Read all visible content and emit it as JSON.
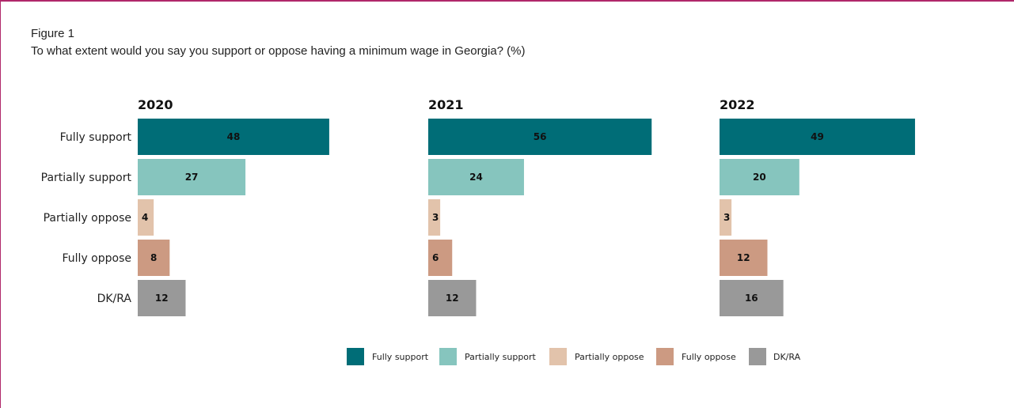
{
  "figure": {
    "label": "Figure 1",
    "question": "To what extent would you say you support or oppose having a minimum wage in Georgia? (%)"
  },
  "chart_data": {
    "type": "bar",
    "orientation": "horizontal",
    "categories": [
      "Fully support",
      "Partially support",
      "Partially oppose",
      "Fully oppose",
      "DK/RA"
    ],
    "panels": [
      {
        "title": "2020",
        "values": [
          48,
          27,
          4,
          8,
          12
        ]
      },
      {
        "title": "2021",
        "values": [
          56,
          24,
          3,
          6,
          12
        ]
      },
      {
        "title": "2022",
        "values": [
          49,
          20,
          3,
          12,
          16
        ]
      }
    ],
    "colors": [
      "#006d77",
      "#86c5be",
      "#e2c3ab",
      "#cc9a82",
      "#999999"
    ],
    "legend": {
      "placement": "bottom-center",
      "entries": [
        "Fully support",
        "Partially support",
        "Partially oppose",
        "Fully oppose",
        "DK/RA"
      ]
    },
    "grid": false
  }
}
